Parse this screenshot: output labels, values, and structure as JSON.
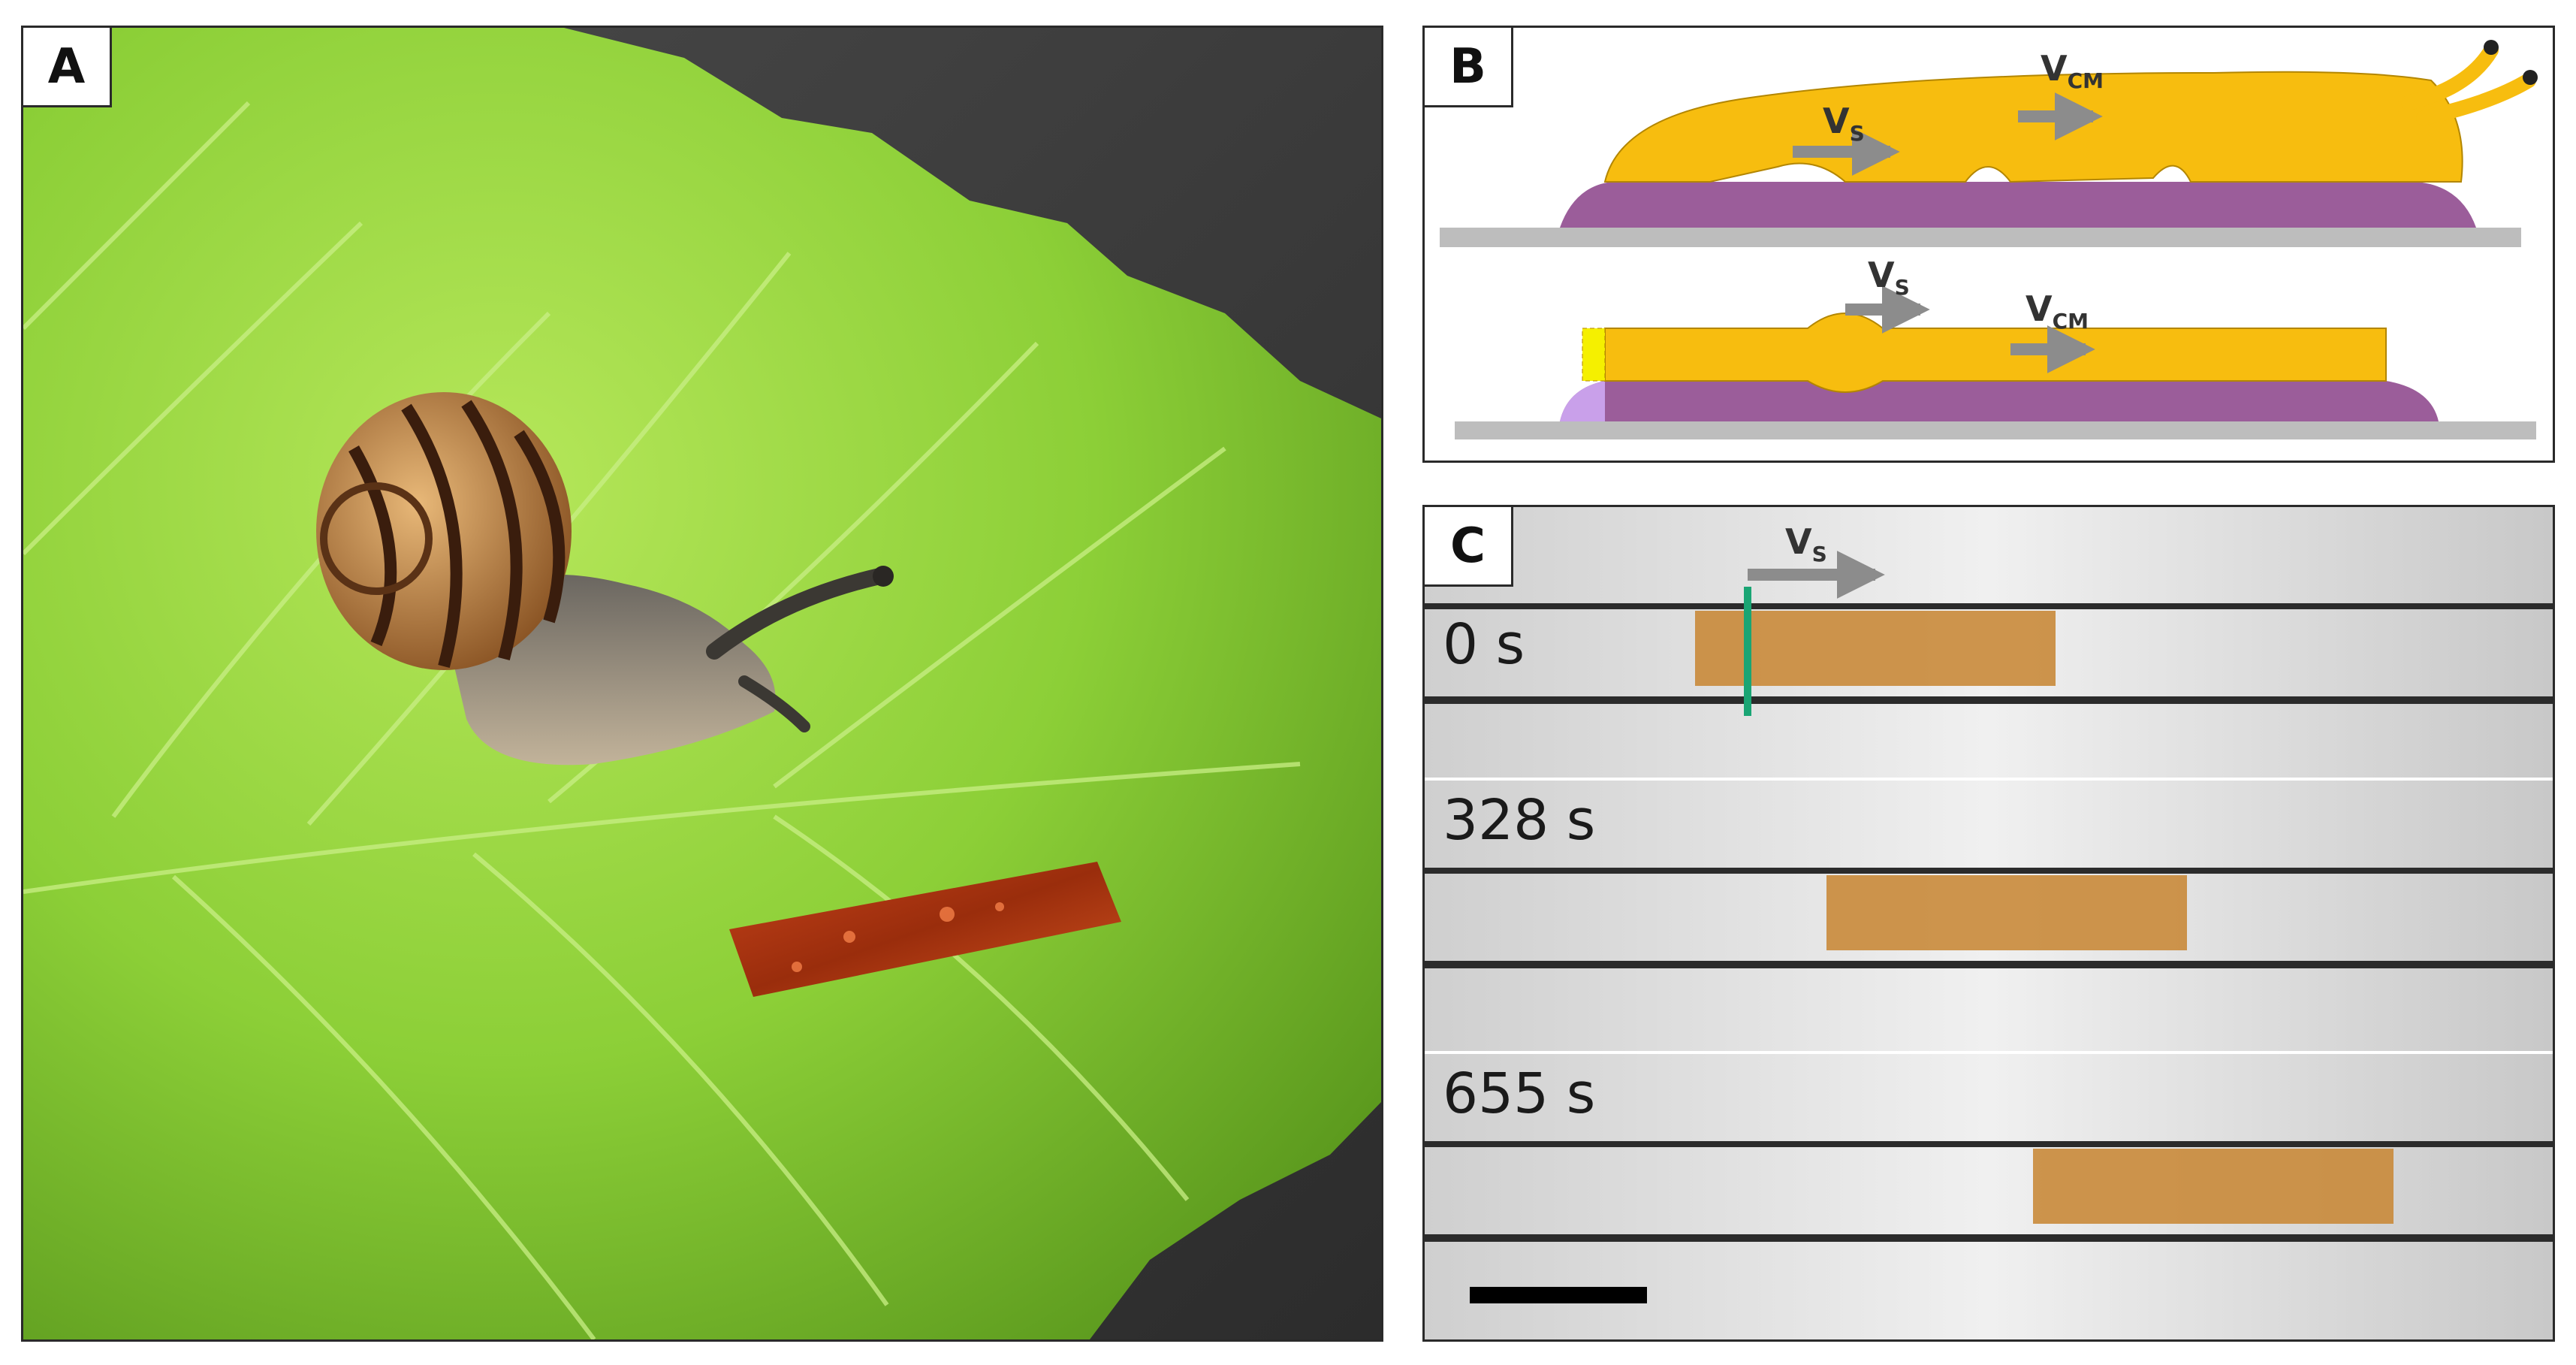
{
  "figure": {
    "panel_a": {
      "label": "A"
    },
    "panel_b": {
      "label": "B",
      "arrow_labels": {
        "vs": "V",
        "vs_sub": "S",
        "vcm": "V",
        "vcm_sub": "CM"
      }
    },
    "panel_c": {
      "label": "C",
      "arrow_label": "V",
      "arrow_sub": "S",
      "times": [
        "0 s",
        "328 s",
        "655 s"
      ]
    }
  },
  "colors": {
    "snail_body": "#f7bd0f",
    "mucus": "#9b5d9a",
    "substrate": "#bdbdbd",
    "strip": "#c98a3a",
    "leaf": "#8fd13c",
    "marker": "#1aa574"
  }
}
